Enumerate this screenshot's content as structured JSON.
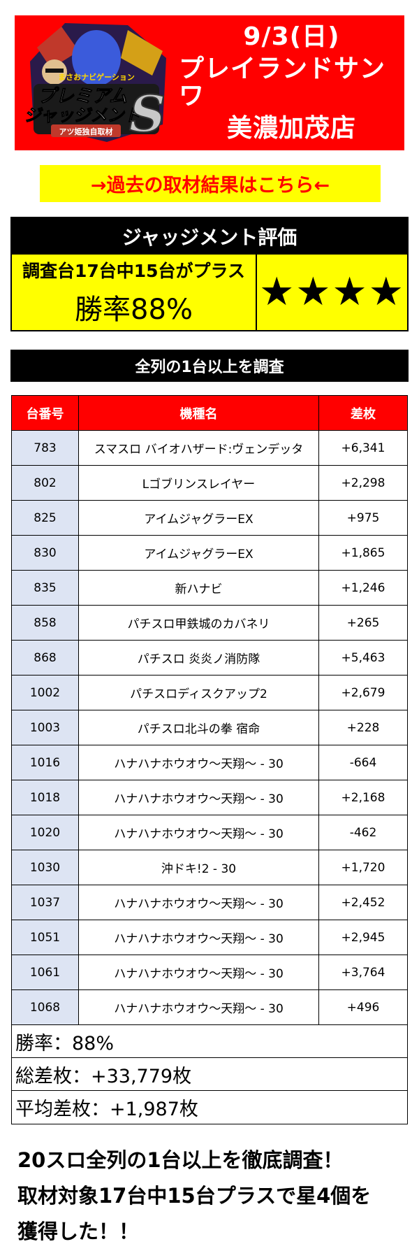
{
  "header": {
    "logo_text": {
      "top": "まさおナビゲーション",
      "title_1": "プレミアム",
      "title_2": "ジャッジメント",
      "sub": "アツ姫独自取材",
      "mark": "S"
    },
    "date": "9/3(日)",
    "store_name": "プレイランドサンワ",
    "branch": "美濃加茂店"
  },
  "past_link": "→過去の取材結果はこちら←",
  "judgement": {
    "title": "ジャッジメント評価",
    "summary_line": "調査台17台中15台がプラス",
    "win_rate": "勝率88%",
    "stars": "★★★★"
  },
  "survey_label": "全列の1台以上を調査",
  "table": {
    "headers": [
      "台番号",
      "機種名",
      "差枚"
    ],
    "rows": [
      [
        "783",
        "スマスロ バイオハザード:ヴェンデッタ",
        "+6,341"
      ],
      [
        "802",
        "Lゴブリンスレイヤー",
        "+2,298"
      ],
      [
        "825",
        "アイムジャグラーEX",
        "+975"
      ],
      [
        "830",
        "アイムジャグラーEX",
        "+1,865"
      ],
      [
        "835",
        "新ハナビ",
        "+1,246"
      ],
      [
        "858",
        "パチスロ甲鉄城のカバネリ",
        "+265"
      ],
      [
        "868",
        "パチスロ 炎炎ノ消防隊",
        "+5,463"
      ],
      [
        "1002",
        "パチスロディスクアップ2",
        "+2,679"
      ],
      [
        "1003",
        "パチスロ北斗の拳 宿命",
        "+228"
      ],
      [
        "1016",
        "ハナハナホウオウ～天翔～ - 30",
        "-664"
      ],
      [
        "1018",
        "ハナハナホウオウ～天翔～ - 30",
        "+2,168"
      ],
      [
        "1020",
        "ハナハナホウオウ～天翔～ - 30",
        "-462"
      ],
      [
        "1030",
        "沖ドキ!2 - 30",
        "+1,720"
      ],
      [
        "1037",
        "ハナハナホウオウ～天翔～ - 30",
        "+2,452"
      ],
      [
        "1051",
        "ハナハナホウオウ～天翔～ - 30",
        "+2,945"
      ],
      [
        "1061",
        "ハナハナホウオウ～天翔～ - 30",
        "+3,764"
      ],
      [
        "1068",
        "ハナハナホウオウ～天翔～ - 30",
        "+496"
      ]
    ],
    "summary": {
      "win_rate": "勝率：88%",
      "total_diff": "総差枚：+33,779枚",
      "avg_diff": "平均差枚：+1,987枚"
    }
  },
  "footer": {
    "line1": "20スロ全列の1台以上を徹底調査！",
    "line2": "取材対象17台中15台プラスで星4個を",
    "line3": "獲得した！！"
  },
  "colors": {
    "header_red": "#ff0000",
    "highlight_yellow": "#ffff00",
    "number_cell_blue": "#dde4f3",
    "black": "#000000"
  }
}
